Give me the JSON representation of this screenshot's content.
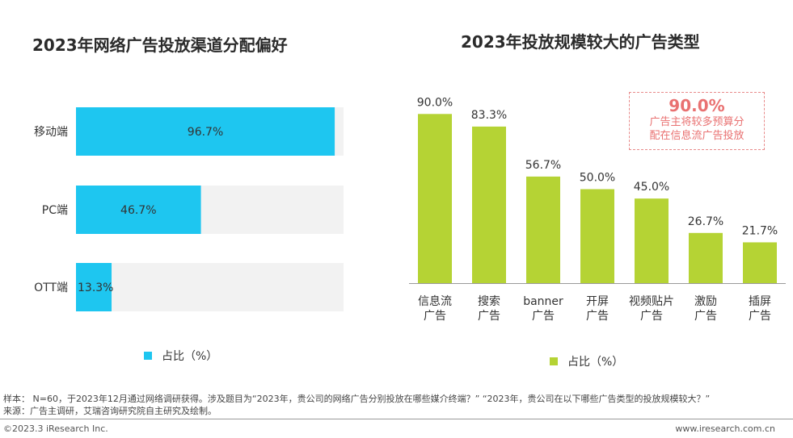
{
  "chart_data": [
    {
      "type": "bar",
      "orientation": "horizontal",
      "title": "2023年网络广告投放渠道分配偏好",
      "categories": [
        "移动端",
        "PC端",
        "OTT端"
      ],
      "series": [
        {
          "name": "占比（%）",
          "values": [
            96.7,
            46.7,
            13.3
          ]
        }
      ],
      "value_labels": [
        "96.7%",
        "46.7%",
        "13.3%"
      ],
      "xlim": [
        0,
        100
      ],
      "legend_text": "占比（%）",
      "legend_position": "bottom",
      "colors": {
        "bar": "#1ec6f0",
        "track": "#f2f2f2"
      }
    },
    {
      "type": "bar",
      "title": "2023年投放规模较大的广告类型",
      "categories": [
        [
          "信息流",
          "广告"
        ],
        [
          "搜索",
          "广告"
        ],
        [
          "banner",
          "广告"
        ],
        [
          "开屏",
          "广告"
        ],
        [
          "视频贴片",
          "广告"
        ],
        [
          "激励",
          "广告"
        ],
        [
          "插屏",
          "广告"
        ]
      ],
      "series": [
        {
          "name": "占比（%）",
          "values": [
            90.0,
            83.3,
            56.7,
            50.0,
            45.0,
            26.7,
            21.7
          ]
        }
      ],
      "value_labels": [
        "90.0%",
        "83.3%",
        "56.7%",
        "50.0%",
        "45.0%",
        "26.7%",
        "21.7%"
      ],
      "ylim": [
        0,
        100
      ],
      "legend_text": "占比（%）",
      "legend_position": "bottom",
      "colors": {
        "bar": "#b5d334"
      },
      "annotation": {
        "value": "90.0%",
        "lines": [
          "广告主将较多预算分",
          "配在信息流广告投放"
        ],
        "color": "#e97171"
      }
    }
  ],
  "footer": {
    "note": "样本： N=60，于2023年12月通过网络调研获得。涉及题目为“2023年，贵公司的网络广告分别投放在哪些媒介终端？”  “2023年，贵公司在以下哪些广告类型的投放规模较大？”",
    "source": "来源：广告主调研，艾瑞咨询研究院自主研究及绘制。",
    "copyright": "©2023.3 iResearch Inc.",
    "website": "www.iresearch.com.cn"
  }
}
